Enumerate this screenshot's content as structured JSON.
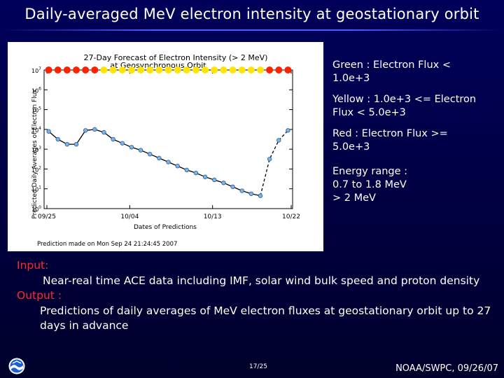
{
  "slide": {
    "title": "Daily-averaged MeV electron intensity at geostationary orbit",
    "page": "17/25",
    "footer": "NOAA/SWPC, 09/26/07",
    "logo_icon": "noaa-logo-icon"
  },
  "legend": {
    "green": "Green : Electron Flux < 1.0e+3",
    "yellow": "Yellow : 1.0e+3 <= Electron Flux < 5.0e+3",
    "red": "Red : Electron Flux >= 5.0e+3",
    "energy_label": "Energy range :",
    "energy_range_1": "0.7 to 1.8 MeV",
    "energy_range_2": "> 2 MeV"
  },
  "notes": {
    "input_label": "Input:",
    "input_text": "Near-real time ACE data including IMF, solar wind bulk speed and proton density",
    "output_label": "Output :",
    "output_text": "Predictions of daily averages of MeV electron fluxes at geostationary orbit up to 27 days in advance"
  },
  "colors": {
    "background": "#00004a",
    "heading_red": "#ff2a2a",
    "flux_high": "#ff2000",
    "flux_mid": "#ffe600",
    "line": "#000000",
    "marker": "#7fb3e6"
  },
  "chart_data": {
    "type": "line",
    "title": "27-Day Forecast of Electron Intensity (> 2 MeV)",
    "subtitle": "at Geosynchronous Orbit",
    "xlabel": "Dates of Predictions",
    "ylabel": "Predicted Daily Averages of Electron Flux",
    "footnote": "Prediction made on Mon Sep 24 21:24:45 2007",
    "x_ticks": [
      "09/25",
      "10/04",
      "10/13",
      "10/22"
    ],
    "y_ticks": [
      "10^0",
      "10^1",
      "10^2",
      "10^3",
      "10^4",
      "10^5",
      "10^6",
      "10^7"
    ],
    "y_scale": "log",
    "ylim": [
      1,
      10000000
    ],
    "days": 27,
    "log10_flux": [
      3.9,
      3.5,
      3.25,
      3.25,
      3.95,
      4.0,
      3.85,
      3.5,
      3.3,
      3.1,
      2.95,
      2.75,
      2.55,
      2.35,
      2.15,
      1.95,
      1.8,
      1.6,
      1.45,
      1.3,
      1.1,
      0.9,
      0.75,
      0.65,
      2.5,
      3.45,
      3.95
    ],
    "alert_row": [
      "red",
      "red",
      "red",
      "red",
      "red",
      "red",
      "yellow",
      "yellow",
      "yellow",
      "yellow",
      "yellow",
      "yellow",
      "yellow",
      "yellow",
      "yellow",
      "yellow",
      "yellow",
      "yellow",
      "yellow",
      "yellow",
      "yellow",
      "yellow",
      "yellow",
      "yellow",
      "red",
      "red",
      "red"
    ]
  }
}
